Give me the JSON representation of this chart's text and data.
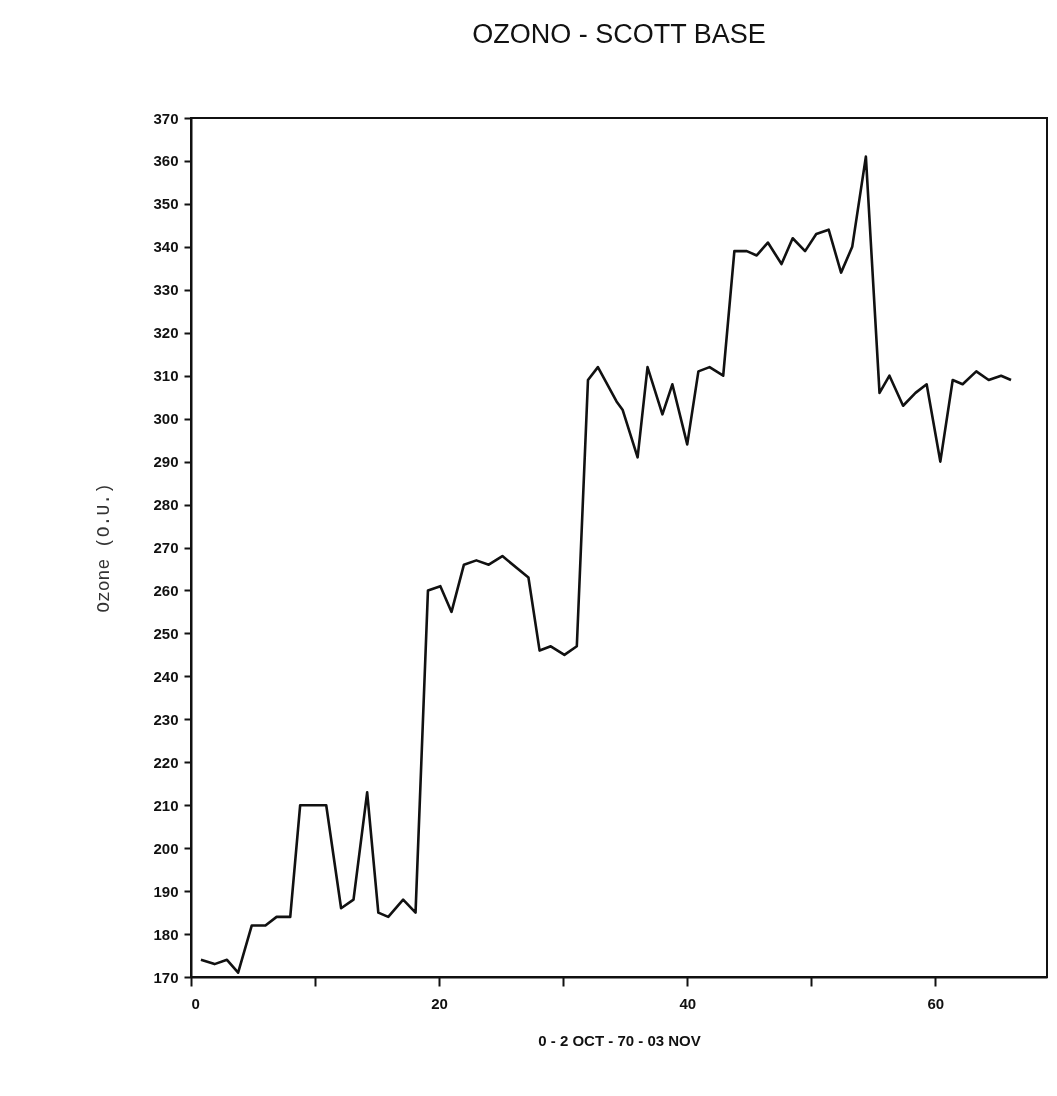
{
  "chart_data": {
    "type": "line",
    "title": "OZONO - SCOTT BASE",
    "xlabel": "0 - 2 OCT - 70 - 03 NOV",
    "ylabel": "Ozone (O.U.)",
    "x": [
      0.8,
      1.9,
      2.9,
      3.8,
      4.9,
      6.0,
      6.9,
      8.0,
      8.8,
      10.9,
      12.1,
      13.1,
      14.2,
      15.1,
      15.9,
      17.1,
      18.1,
      19.1,
      20.1,
      21.0,
      22.0,
      23.0,
      24.0,
      25.1,
      27.2,
      28.1,
      29.0,
      30.1,
      31.1,
      32.0,
      32.8,
      34.3,
      34.8,
      36.0,
      36.8,
      38.0,
      38.8,
      40.0,
      40.9,
      41.8,
      42.9,
      43.8,
      44.8,
      45.6,
      46.5,
      47.6,
      48.5,
      49.5,
      50.4,
      51.4,
      52.4,
      53.3,
      54.4,
      55.5,
      56.3,
      57.4,
      58.4,
      59.3,
      60.4,
      61.4,
      62.2,
      63.3,
      64.3,
      65.3,
      66.1
    ],
    "series": [
      {
        "color": "#111111",
        "values": [
          174,
          173,
          174,
          171,
          182,
          182,
          184,
          184,
          210,
          210,
          186,
          188,
          213,
          185,
          184,
          188,
          185,
          260,
          261,
          255,
          266,
          267,
          266,
          268,
          263,
          246,
          247,
          245,
          247,
          309,
          312,
          304,
          302,
          291,
          312,
          301,
          308,
          294,
          311,
          312,
          310,
          339,
          339,
          338,
          341,
          336,
          342,
          339,
          343,
          344,
          334,
          340,
          361,
          306,
          310,
          303,
          306,
          308,
          290,
          309,
          308,
          311,
          309,
          310,
          309
        ]
      }
    ],
    "xlim": [
      0,
      69
    ],
    "xticks": [
      0,
      {
        "value": 10,
        "label": null
      },
      20,
      {
        "value": 30,
        "label": null
      },
      40,
      {
        "value": 50,
        "label": null
      },
      60
    ],
    "ylim": [
      170,
      370
    ],
    "yticks": [
      170,
      180,
      190,
      200,
      210,
      220,
      230,
      240,
      250,
      260,
      270,
      280,
      290,
      300,
      310,
      320,
      330,
      340,
      350,
      360,
      370
    ],
    "grid": false,
    "marker": "none",
    "line_style": "solid"
  }
}
